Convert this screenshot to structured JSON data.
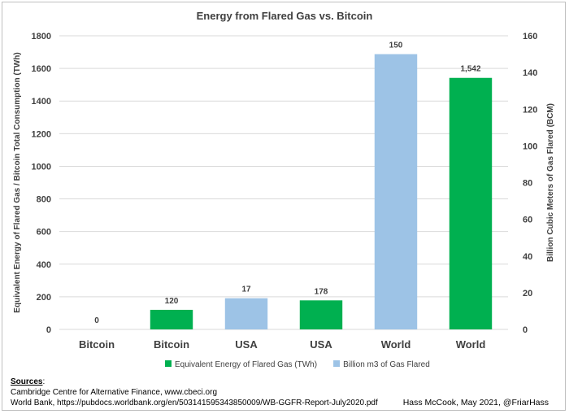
{
  "chart_data": {
    "type": "bar",
    "title": "Energy from Flared Gas vs. Bitcoin",
    "categories": [
      "Bitcoin",
      "Bitcoin",
      "USA",
      "USA",
      "World",
      "World"
    ],
    "bars": [
      {
        "category": "Bitcoin",
        "series": "Equivalent Energy of Flared Gas (TWh)",
        "axis": "left",
        "value": 0,
        "label": "0"
      },
      {
        "category": "Bitcoin",
        "series": "Equivalent Energy of Flared Gas (TWh)",
        "axis": "left",
        "value": 120,
        "label": "120"
      },
      {
        "category": "USA",
        "series": "Billion m3 of Gas Flared",
        "axis": "right",
        "value": 17,
        "label": "17"
      },
      {
        "category": "USA",
        "series": "Equivalent Energy of Flared Gas (TWh)",
        "axis": "left",
        "value": 178,
        "label": "178"
      },
      {
        "category": "World",
        "series": "Billion m3 of Gas Flared",
        "axis": "right",
        "value": 150,
        "label": "150"
      },
      {
        "category": "World",
        "series": "Equivalent Energy of Flared Gas (TWh)",
        "axis": "left",
        "value": 1542,
        "label": "1,542"
      }
    ],
    "series": [
      {
        "name": "Equivalent Energy of Flared Gas (TWh)",
        "color": "#00b050",
        "axis": "left"
      },
      {
        "name": "Billion m3 of Gas Flared",
        "color": "#9dc3e6",
        "axis": "right"
      }
    ],
    "ylabel": "Equivalent Energy of Flared Gas / Bitcoin Total Consumption (TWh)",
    "y2label": "Billion Cubic Meters of Gas Flared (BCM)",
    "ylim": [
      0,
      1800
    ],
    "y2lim": [
      0,
      160
    ],
    "yticks": [
      "0",
      "200",
      "400",
      "600",
      "800",
      "1000",
      "1200",
      "1400",
      "1600",
      "1800"
    ],
    "y2ticks": [
      "0",
      "20",
      "40",
      "60",
      "80",
      "100",
      "120",
      "140",
      "160"
    ],
    "grid": true,
    "legend_position": "bottom"
  },
  "footer": {
    "sources_header": "Sources",
    "sources_colon": ":",
    "source_lines": [
      "Cambridge Centre for Alternative Finance, www.cbeci.org",
      "World Bank, https://pubdocs.worldbank.org/en/503141595343850009/WB-GGFR-Report-July2020.pdf"
    ],
    "credit": "Hass McCook, May 2021, @FriarHass"
  }
}
